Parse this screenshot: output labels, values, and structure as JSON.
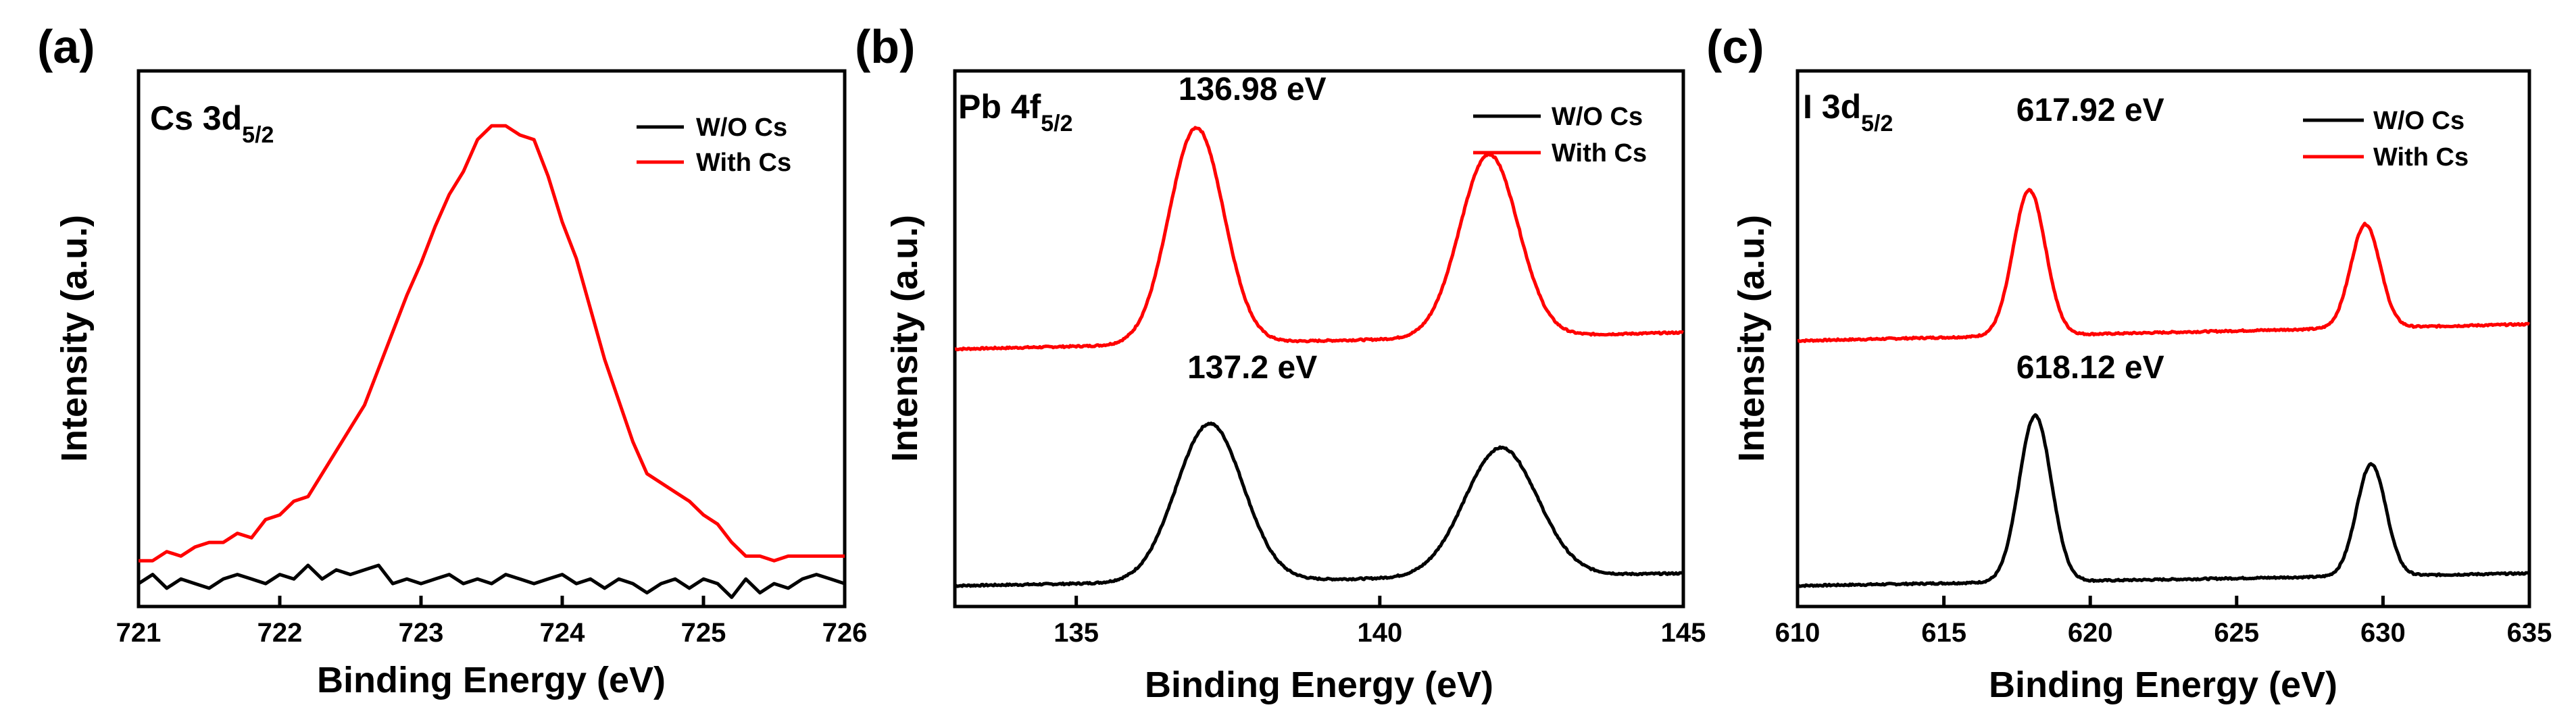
{
  "chart_data": [
    {
      "type": "line",
      "panel_label": "(a)",
      "title": {
        "base": "Cs 3d",
        "sub": "5/2"
      },
      "xlabel": "Binding Energy (eV)",
      "ylabel": "Intensity (a.u.)",
      "xlim": [
        721,
        726
      ],
      "ylim": [
        -0.05,
        1.12
      ],
      "xticks": [
        721,
        722,
        723,
        724,
        725,
        726
      ],
      "xtick_labels": [
        "721",
        "722",
        "723",
        "724",
        "725",
        "726"
      ],
      "yticks_shown": false,
      "legend": {
        "position": "top-right",
        "entries": [
          "W/O Cs",
          "With Cs"
        ]
      },
      "series": [
        {
          "name": "W/O Cs",
          "color": "#000000",
          "x": [
            721.0,
            721.1,
            721.2,
            721.3,
            721.4,
            721.5,
            721.6,
            721.7,
            721.8,
            721.9,
            722.0,
            722.1,
            722.2,
            722.3,
            722.4,
            722.5,
            722.6,
            722.7,
            722.8,
            722.9,
            723.0,
            723.1,
            723.2,
            723.3,
            723.4,
            723.5,
            723.6,
            723.7,
            723.8,
            723.9,
            724.0,
            724.1,
            724.2,
            724.3,
            724.4,
            724.5,
            724.6,
            724.7,
            724.8,
            724.9,
            725.0,
            725.1,
            725.2,
            725.3,
            725.4,
            725.5,
            725.6,
            725.7,
            725.8,
            725.9,
            726.0
          ],
          "y": [
            0.0,
            0.02,
            -0.01,
            0.01,
            0.0,
            -0.01,
            0.01,
            0.02,
            0.01,
            0.0,
            0.02,
            0.01,
            0.04,
            0.01,
            0.03,
            0.02,
            0.03,
            0.04,
            0.0,
            0.01,
            0.0,
            0.01,
            0.02,
            0.0,
            0.01,
            0.0,
            0.02,
            0.01,
            0.0,
            0.01,
            0.02,
            0.0,
            0.01,
            -0.01,
            0.01,
            0.0,
            -0.02,
            0.0,
            0.01,
            -0.01,
            0.01,
            0.0,
            -0.03,
            0.01,
            -0.02,
            0.0,
            -0.01,
            0.01,
            0.02,
            0.01,
            0.0
          ]
        },
        {
          "name": "With Cs",
          "color": "#ff0000",
          "x": [
            721.0,
            721.1,
            721.2,
            721.3,
            721.4,
            721.5,
            721.6,
            721.7,
            721.8,
            721.9,
            722.0,
            722.1,
            722.2,
            722.3,
            722.4,
            722.5,
            722.6,
            722.7,
            722.8,
            722.9,
            723.0,
            723.1,
            723.2,
            723.3,
            723.4,
            723.5,
            723.6,
            723.7,
            723.8,
            723.9,
            724.0,
            724.1,
            724.2,
            724.3,
            724.4,
            724.5,
            724.6,
            724.7,
            724.8,
            724.9,
            725.0,
            725.1,
            725.2,
            725.3,
            725.4,
            725.5,
            725.6,
            725.7,
            725.8,
            725.9,
            726.0
          ],
          "y": [
            0.05,
            0.05,
            0.07,
            0.06,
            0.08,
            0.09,
            0.09,
            0.11,
            0.1,
            0.14,
            0.15,
            0.18,
            0.19,
            0.24,
            0.29,
            0.34,
            0.39,
            0.47,
            0.55,
            0.63,
            0.7,
            0.78,
            0.85,
            0.9,
            0.97,
            1.0,
            1.0,
            0.98,
            0.97,
            0.89,
            0.79,
            0.71,
            0.6,
            0.49,
            0.4,
            0.31,
            0.24,
            0.22,
            0.2,
            0.18,
            0.15,
            0.13,
            0.09,
            0.06,
            0.06,
            0.05,
            0.06,
            0.06,
            0.06,
            0.06,
            0.06
          ]
        }
      ],
      "annotations": []
    },
    {
      "type": "line",
      "panel_label": "(b)",
      "title": {
        "base": "Pb 4f",
        "sub": "5/2"
      },
      "xlabel": "Binding Energy (eV)",
      "ylabel": "Intensity (a.u.)",
      "xlim": [
        133,
        145
      ],
      "ylim": [
        -0.05,
        1.24
      ],
      "xticks": [
        135,
        140,
        145
      ],
      "xtick_labels": [
        "135",
        "140",
        "145"
      ],
      "yticks_shown": false,
      "legend": {
        "position": "top-right",
        "entries": [
          "W/O Cs",
          "With Cs"
        ]
      },
      "series": [
        {
          "name": "W/O Cs",
          "color": "#000000",
          "peaks": [
            {
              "center": 137.2,
              "height": 0.38,
              "width": 0.55
            },
            {
              "center": 142.0,
              "height": 0.31,
              "width": 0.6
            }
          ],
          "baseline": [
            0.0,
            0.03
          ],
          "x_range": [
            133,
            145
          ]
        },
        {
          "name": "With Cs",
          "color": "#ff0000",
          "peaks": [
            {
              "center": 136.98,
              "height": 0.52,
              "width": 0.45
            },
            {
              "center": 141.8,
              "height": 0.44,
              "width": 0.48
            }
          ],
          "baseline": [
            0.57,
            0.61
          ],
          "x_range": [
            133,
            145
          ]
        }
      ],
      "annotations": [
        {
          "text": "136.98 eV",
          "x": 137.9,
          "y": 1.17
        },
        {
          "text": "137.2 eV",
          "x": 137.9,
          "y": 0.5
        }
      ]
    },
    {
      "type": "line",
      "panel_label": "(c)",
      "title": {
        "base": "I 3d",
        "sub": "5/2"
      },
      "xlabel": "Binding Energy (eV)",
      "ylabel": "Intensity (a.u.)",
      "xlim": [
        610,
        635
      ],
      "ylim": [
        -0.05,
        1.24
      ],
      "xticks": [
        610,
        615,
        620,
        625,
        630,
        635
      ],
      "xtick_labels": [
        "610",
        "615",
        "620",
        "625",
        "630",
        "635"
      ],
      "yticks_shown": false,
      "legend": {
        "position": "top-right",
        "entries": [
          "W/O Cs",
          "With Cs"
        ]
      },
      "series": [
        {
          "name": "W/O Cs",
          "color": "#000000",
          "peaks": [
            {
              "center": 618.12,
              "height": 0.4,
              "width": 0.55
            },
            {
              "center": 629.6,
              "height": 0.27,
              "width": 0.5
            }
          ],
          "baseline": [
            0.0,
            0.03
          ],
          "x_range": [
            610,
            635
          ]
        },
        {
          "name": "With Cs",
          "color": "#ff0000",
          "peaks": [
            {
              "center": 617.92,
              "height": 0.35,
              "width": 0.55
            },
            {
              "center": 629.4,
              "height": 0.25,
              "width": 0.5
            }
          ],
          "baseline": [
            0.59,
            0.63
          ],
          "x_range": [
            610,
            635
          ]
        }
      ],
      "annotations": [
        {
          "text": "617.92 eV",
          "x": 620.0,
          "y": 1.12
        },
        {
          "text": "618.12 eV",
          "x": 620.0,
          "y": 0.5
        }
      ]
    }
  ]
}
